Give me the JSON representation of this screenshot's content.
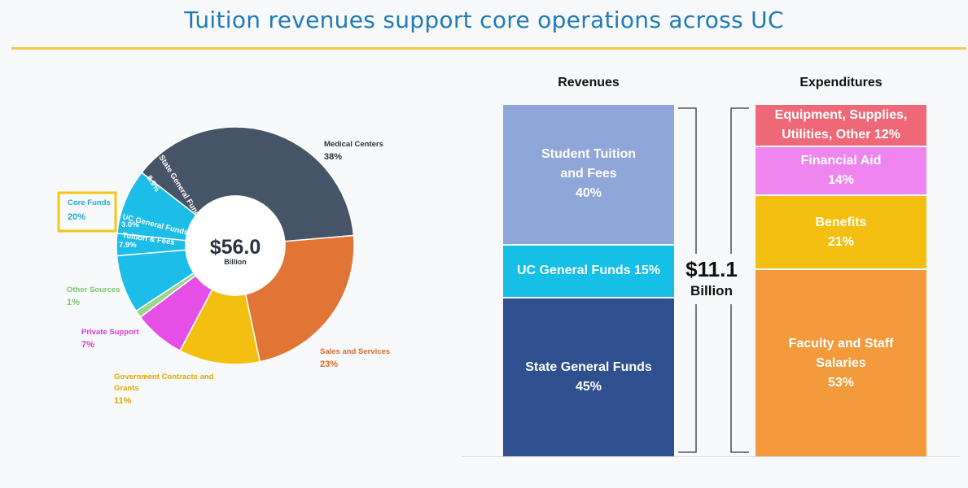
{
  "title": "Tuition revenues support core operations across UC",
  "chart_data": [
    {
      "type": "pie",
      "center_value": "$56.0",
      "center_unit": "Billion",
      "slices": [
        {
          "name": "Medical Centers",
          "value": 38,
          "label": "38%",
          "color": "#465467"
        },
        {
          "name": "Sales and Services",
          "value": 23,
          "label": "23%",
          "color": "#e07536"
        },
        {
          "name": "Government Contracts and Grants",
          "value": 11,
          "label": "11%",
          "color": "#f3c012"
        },
        {
          "name": "Private Support",
          "value": 7,
          "label": "7%",
          "color": "#e54fe8"
        },
        {
          "name": "Other Sources",
          "value": 1,
          "label": "1%",
          "color": "#9ad58a"
        },
        {
          "name": "Tuition & Fees",
          "value": 7.9,
          "label": "7.9%",
          "color": "#1cbde8"
        },
        {
          "name": "UC General Funds",
          "value": 3.0,
          "label": "3.0%",
          "color": "#1cbde8"
        },
        {
          "name": "State General Funds",
          "value": 8.9,
          "label": "8.9%",
          "color": "#1cbde8"
        }
      ],
      "callout": {
        "name": "Core Funds",
        "value": 20,
        "label": "20%",
        "box_color": "#f5c518"
      }
    },
    {
      "type": "bar",
      "stacked": true,
      "total_amount": "$11.1",
      "total_unit": "Billion",
      "bars": [
        {
          "name": "Revenues",
          "segments": [
            {
              "label": "Student Tuition\nand Fees\n40%",
              "value": 40,
              "color": "#8fa6d8"
            },
            {
              "label": "UC General Funds 15%",
              "value": 15,
              "color": "#15bfe6"
            },
            {
              "label": "State General Funds\n45%",
              "value": 45,
              "color": "#304f8e"
            }
          ]
        },
        {
          "name": "Expenditures",
          "segments": [
            {
              "label": "Equipment, Supplies,\nUtilities, Other 12%",
              "value": 12,
              "color": "#ef6878"
            },
            {
              "label": "Financial Aid\n14%",
              "value": 14,
              "color": "#ef85ef"
            },
            {
              "label": "Benefits\n21%",
              "value": 21,
              "color": "#f3c012"
            },
            {
              "label": "Faculty and Staff\nSalaries\n53%",
              "value": 53,
              "color": "#f29a3c"
            }
          ]
        }
      ]
    }
  ]
}
